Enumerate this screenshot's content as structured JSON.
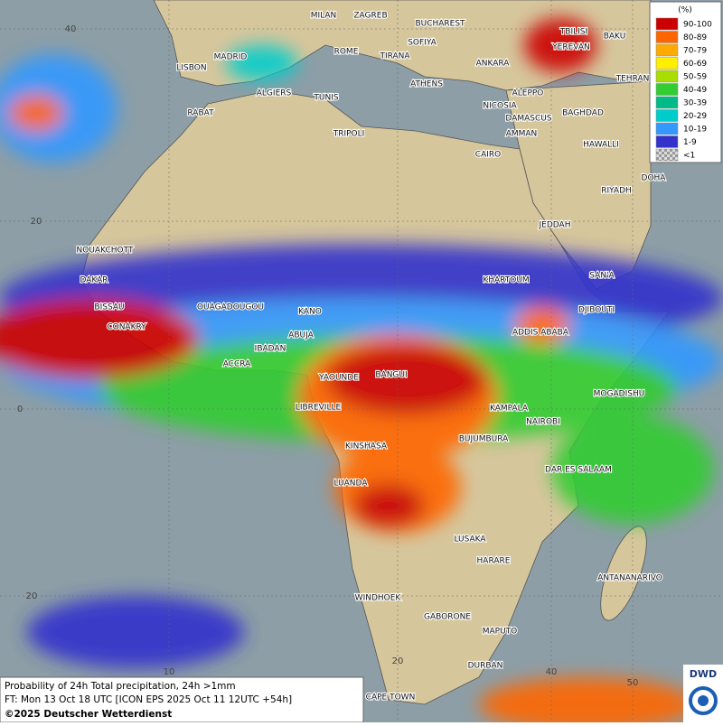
{
  "map": {
    "grid_labels": [
      "40",
      "20",
      "0",
      "20",
      "10",
      "20",
      "40",
      "50"
    ],
    "cities": [
      "MILAN",
      "ZAGREB",
      "BUCHAREST",
      "TBILISI",
      "BAKU",
      "MADRID",
      "ROME",
      "SOFIYA",
      "YEREVAN",
      "LISBON",
      "TIRANA",
      "ANKARA",
      "TEHRAN",
      "ATHENS",
      "ALGIERS",
      "TUNIS",
      "ALEPPO",
      "RABAT",
      "NICOSIA",
      "BAGHDAD",
      "DAMASCUS",
      "TRIPOLI",
      "AMMAN",
      "HAWALLI",
      "CAIRO",
      "DOHA",
      "RIYADH",
      "JEDDAH",
      "NOUAKCHOTT",
      "SAN'A",
      "DAKAR",
      "KHARTOUM",
      "BISSAU",
      "OUAGADOUGOU",
      "KANO",
      "DJIBOUTI",
      "CONAKRY",
      "ADDIS ABABA",
      "ABUJA",
      "IBADAN",
      "ACCRA",
      "YAOUNDE",
      "BANGUI",
      "MOGADISHU",
      "LIBREVILLE",
      "KAMPALA",
      "NAIROBI",
      "BUJUMBURA",
      "KINSHASA",
      "DAR ES SALAAM",
      "LUANDA",
      "LUSAKA",
      "HARARE",
      "ANTANANARIVO",
      "WINDHOEK",
      "GABORONE",
      "MAPUTO",
      "DURBAN",
      "CAPE TOWN"
    ]
  },
  "legend": {
    "unit": "(%)",
    "entries": [
      {
        "label": "90-100",
        "color": "#cc0000"
      },
      {
        "label": "80-89",
        "color": "#ff6600"
      },
      {
        "label": "70-79",
        "color": "#ffaa00"
      },
      {
        "label": "60-69",
        "color": "#ffee00"
      },
      {
        "label": "50-59",
        "color": "#aadd00"
      },
      {
        "label": "40-49",
        "color": "#33cc33"
      },
      {
        "label": "30-39",
        "color": "#00bb88"
      },
      {
        "label": "20-29",
        "color": "#00cccc"
      },
      {
        "label": "10-19",
        "color": "#3399ff"
      },
      {
        "label": "1-9",
        "color": "#3333cc"
      },
      {
        "label": "<1",
        "color": "#bbbbbb"
      }
    ]
  },
  "footer": {
    "title": "Probability of 24h Total precipitation, 24h >1mm",
    "forecast": "FT: Mon 13 Oct 18 UTC [ICON EPS 2025 Oct 11 12UTC +54h]",
    "copyright": "©2025 Deutscher Wetterdienst"
  },
  "logo": "DWD"
}
